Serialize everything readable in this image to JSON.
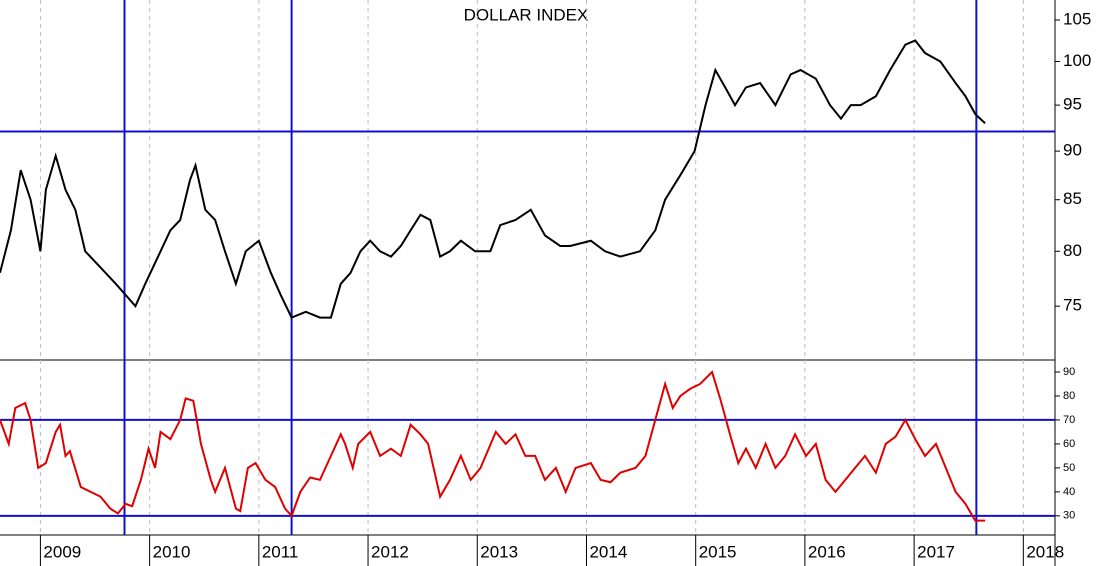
{
  "chart_data": [
    {
      "type": "line",
      "title": "DOLLAR INDEX",
      "log_scale": true,
      "grid": true,
      "xlim": [
        2008.63,
        2018.29
      ],
      "ylim": [
        70.4,
        107.5
      ],
      "yticks": [
        75,
        80,
        85,
        90,
        95,
        100,
        105
      ],
      "hlines": [
        {
          "value": 92.1,
          "color": "#1010cc"
        }
      ],
      "vlines": [
        {
          "value": 2009.77,
          "color": "#1010cc"
        },
        {
          "value": 2011.3,
          "color": "#1010cc"
        },
        {
          "value": 2017.57,
          "color": "#1010cc"
        }
      ],
      "x": [
        2008.63,
        2008.73,
        2008.82,
        2008.91,
        2009.0,
        2009.05,
        2009.14,
        2009.23,
        2009.32,
        2009.41,
        2009.55,
        2009.69,
        2009.78,
        2009.87,
        2009.96,
        2010.1,
        2010.19,
        2010.28,
        2010.37,
        2010.42,
        2010.51,
        2010.6,
        2010.69,
        2010.79,
        2010.88,
        2011.0,
        2011.11,
        2011.2,
        2011.3,
        2011.43,
        2011.56,
        2011.66,
        2011.75,
        2011.84,
        2011.93,
        2012.02,
        2012.11,
        2012.21,
        2012.3,
        2012.39,
        2012.48,
        2012.57,
        2012.66,
        2012.75,
        2012.85,
        2012.98,
        2013.12,
        2013.21,
        2013.35,
        2013.49,
        2013.62,
        2013.76,
        2013.85,
        2014.04,
        2014.17,
        2014.31,
        2014.49,
        2014.63,
        2014.72,
        2014.86,
        2014.99,
        2015.09,
        2015.18,
        2015.27,
        2015.36,
        2015.46,
        2015.59,
        2015.73,
        2015.87,
        2015.96,
        2016.1,
        2016.23,
        2016.33,
        2016.42,
        2016.51,
        2016.65,
        2016.78,
        2016.92,
        2017.01,
        2017.1,
        2017.24,
        2017.38,
        2017.47,
        2017.56,
        2017.65
      ],
      "series": [
        {
          "color": "#000000",
          "values": [
            78,
            82,
            88,
            85,
            80,
            86,
            89.5,
            86,
            84,
            80,
            78.5,
            77,
            76,
            75,
            77,
            80,
            82,
            83,
            87,
            88.5,
            84,
            83,
            80,
            77,
            80,
            81,
            78,
            76,
            74,
            74.5,
            74,
            74,
            77,
            78,
            80,
            81,
            80,
            79.5,
            80.5,
            82,
            83.5,
            83,
            79.5,
            80,
            81,
            80,
            80,
            82.5,
            83,
            84,
            81.5,
            80.5,
            80.5,
            81,
            80,
            79.5,
            80,
            82,
            85,
            87.5,
            90,
            95,
            99,
            97,
            95,
            97,
            97.5,
            95,
            98.5,
            99,
            98,
            95,
            93.5,
            95,
            95,
            96,
            99,
            102,
            102.5,
            101,
            100,
            97.5,
            96,
            94,
            93
          ]
        }
      ]
    },
    {
      "type": "line",
      "grid": true,
      "xlim": [
        2008.63,
        2018.29
      ],
      "ylim": [
        22,
        95
      ],
      "yticks": [
        30,
        40,
        50,
        60,
        70,
        80,
        90
      ],
      "xticks": [
        2009,
        2010,
        2011,
        2012,
        2013,
        2014,
        2015,
        2016,
        2017,
        2018
      ],
      "hlines": [
        {
          "value": 30,
          "color": "#1010cc"
        },
        {
          "value": 70,
          "color": "#1010cc"
        }
      ],
      "vlines": [
        {
          "value": 2009.77,
          "color": "#1010cc"
        },
        {
          "value": 2011.3,
          "color": "#1010cc"
        },
        {
          "value": 2017.57,
          "color": "#1010cc"
        }
      ],
      "x": [
        2008.63,
        2008.71,
        2008.77,
        2008.86,
        2008.91,
        2008.98,
        2009.05,
        2009.14,
        2009.18,
        2009.23,
        2009.27,
        2009.37,
        2009.46,
        2009.55,
        2009.64,
        2009.71,
        2009.78,
        2009.84,
        2009.92,
        2009.99,
        2010.05,
        2010.1,
        2010.19,
        2010.28,
        2010.33,
        2010.4,
        2010.47,
        2010.56,
        2010.6,
        2010.69,
        2010.79,
        2010.83,
        2010.9,
        2010.97,
        2011.06,
        2011.15,
        2011.24,
        2011.3,
        2011.38,
        2011.47,
        2011.56,
        2011.66,
        2011.75,
        2011.79,
        2011.86,
        2011.91,
        2012.02,
        2012.11,
        2012.21,
        2012.3,
        2012.39,
        2012.48,
        2012.55,
        2012.66,
        2012.75,
        2012.85,
        2012.94,
        2013.03,
        2013.17,
        2013.26,
        2013.35,
        2013.44,
        2013.53,
        2013.62,
        2013.72,
        2013.81,
        2013.9,
        2014.04,
        2014.13,
        2014.22,
        2014.31,
        2014.45,
        2014.54,
        2014.63,
        2014.72,
        2014.79,
        2014.86,
        2014.95,
        2015.04,
        2015.15,
        2015.23,
        2015.32,
        2015.39,
        2015.46,
        2015.55,
        2015.64,
        2015.73,
        2015.82,
        2015.91,
        2016.01,
        2016.1,
        2016.19,
        2016.28,
        2016.37,
        2016.46,
        2016.55,
        2016.65,
        2016.74,
        2016.83,
        2016.92,
        2017.01,
        2017.1,
        2017.2,
        2017.29,
        2017.38,
        2017.47,
        2017.56,
        2017.65
      ],
      "series": [
        {
          "color": "#e00000",
          "values": [
            70,
            60,
            75,
            77,
            70,
            50,
            52,
            65,
            68,
            55,
            57,
            42,
            40,
            38,
            33,
            31,
            35,
            34,
            45,
            58,
            50,
            65,
            62,
            70,
            79,
            78,
            60,
            45,
            40,
            50,
            33,
            32,
            50,
            52,
            45,
            42,
            33,
            30,
            40,
            46,
            45,
            55,
            64,
            60,
            50,
            60,
            65,
            55,
            58,
            55,
            68,
            64,
            60,
            38,
            45,
            55,
            45,
            50,
            65,
            60,
            64,
            55,
            55,
            45,
            50,
            40,
            50,
            52,
            45,
            44,
            48,
            50,
            55,
            70,
            85,
            75,
            80,
            83,
            85,
            90,
            78,
            63,
            52,
            58,
            50,
            60,
            50,
            55,
            64,
            55,
            60,
            45,
            40,
            45,
            50,
            55,
            48,
            60,
            63,
            70,
            62,
            55,
            60,
            50,
            40,
            35,
            28,
            28
          ]
        }
      ]
    }
  ]
}
